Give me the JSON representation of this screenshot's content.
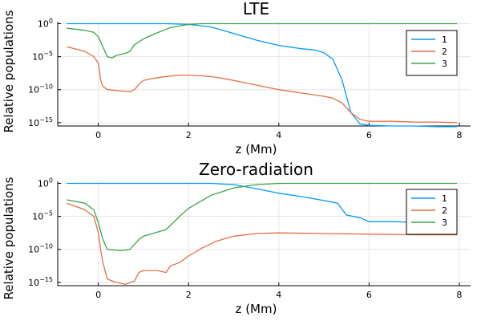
{
  "chart_data": [
    {
      "type": "line",
      "title": "LTE",
      "xlabel": "z (Mm)",
      "ylabel": "Relative populations",
      "xlim": [
        -0.9,
        8.25
      ],
      "ylim_log10": [
        -15.5,
        0.3
      ],
      "y_scale": "log",
      "x_ticks": [
        0,
        2,
        4,
        6,
        8
      ],
      "x_tick_labels": [
        "0",
        "2",
        "4",
        "6",
        "8"
      ],
      "y_ticks_log10": [
        0,
        -5,
        -10,
        -15
      ],
      "y_tick_labels": [
        {
          "base": "10",
          "exp": "0"
        },
        {
          "base": "10",
          "exp": "−5"
        },
        {
          "base": "10",
          "exp": "−10"
        },
        {
          "base": "10",
          "exp": "−15"
        }
      ],
      "grid": true,
      "legend_position": "top-right",
      "series": [
        {
          "name": "1",
          "color": "#009AFA",
          "x": [
            -0.7,
            0,
            0.5,
            1,
            1.5,
            2.0,
            2.5,
            3.0,
            3.5,
            4.0,
            4.5,
            4.8,
            5.0,
            5.2,
            5.4,
            5.6,
            5.8,
            6.0,
            6.5,
            7.0,
            7.5,
            7.95
          ],
          "log10y": [
            0,
            0,
            0,
            0,
            0,
            -0.1,
            -0.5,
            -1.5,
            -2.5,
            -3.3,
            -3.8,
            -4.0,
            -4.4,
            -5.4,
            -8.5,
            -13.5,
            -15.2,
            -15.4,
            -15.5,
            -15.5,
            -15.6,
            -15.6
          ]
        },
        {
          "name": "2",
          "color": "#E26F46",
          "x": [
            -0.7,
            -0.3,
            -0.1,
            0.0,
            0.05,
            0.1,
            0.2,
            0.5,
            0.7,
            0.8,
            0.9,
            1.0,
            1.2,
            1.5,
            1.8,
            2.0,
            2.3,
            2.6,
            3.0,
            3.5,
            4.0,
            4.5,
            5.0,
            5.2,
            5.4,
            5.6,
            5.8,
            6.0,
            6.5,
            7.0,
            7.5,
            7.95
          ],
          "log10y": [
            -3.5,
            -4.2,
            -5.0,
            -6.0,
            -8.5,
            -9.5,
            -10.0,
            -10.2,
            -10.3,
            -10.0,
            -9.2,
            -8.6,
            -8.3,
            -8.0,
            -7.8,
            -7.8,
            -7.9,
            -8.1,
            -8.6,
            -9.3,
            -10.0,
            -10.5,
            -11.0,
            -11.3,
            -12.0,
            -13.5,
            -14.5,
            -14.8,
            -14.8,
            -14.9,
            -14.9,
            -15.0
          ]
        },
        {
          "name": "3",
          "color": "#3EA44E",
          "x": [
            -0.7,
            -0.3,
            -0.1,
            0.0,
            0.1,
            0.2,
            0.3,
            0.4,
            0.6,
            0.7,
            0.8,
            1.0,
            1.3,
            1.6,
            2.0,
            2.3,
            2.6,
            3.0,
            4.0,
            5.0,
            6.0,
            7.0,
            7.95
          ],
          "log10y": [
            -0.7,
            -1.0,
            -1.3,
            -2.0,
            -3.5,
            -5.0,
            -5.2,
            -4.8,
            -4.5,
            -4.2,
            -3.2,
            -2.3,
            -1.4,
            -0.6,
            -0.1,
            0.0,
            0.0,
            0.0,
            0.0,
            0.0,
            0.0,
            0.0,
            0.0
          ]
        }
      ]
    },
    {
      "type": "line",
      "title": "Zero-radiation",
      "xlabel": "z (Mm)",
      "ylabel": "Relative populations",
      "xlim": [
        -0.9,
        8.25
      ],
      "ylim_log10": [
        -15.5,
        0.3
      ],
      "y_scale": "log",
      "x_ticks": [
        0,
        2,
        4,
        6,
        8
      ],
      "x_tick_labels": [
        "0",
        "2",
        "4",
        "6",
        "8"
      ],
      "y_ticks_log10": [
        0,
        -5,
        -10,
        -15
      ],
      "y_tick_labels": [
        {
          "base": "10",
          "exp": "0"
        },
        {
          "base": "10",
          "exp": "−5"
        },
        {
          "base": "10",
          "exp": "−10"
        },
        {
          "base": "10",
          "exp": "−15"
        }
      ],
      "grid": true,
      "legend_position": "top-right",
      "series": [
        {
          "name": "1",
          "color": "#009AFA",
          "x": [
            -0.7,
            0,
            1,
            2,
            2.5,
            3.0,
            3.5,
            4.0,
            4.5,
            5.0,
            5.3,
            5.5,
            5.8,
            6.0,
            6.5,
            7.0,
            7.5,
            7.95
          ],
          "log10y": [
            0,
            0,
            0,
            0,
            0,
            -0.2,
            -0.8,
            -1.5,
            -2.0,
            -2.6,
            -3.0,
            -4.8,
            -5.2,
            -5.8,
            -5.8,
            -5.9,
            -5.9,
            -6.0
          ]
        },
        {
          "name": "2",
          "color": "#E26F46",
          "x": [
            -0.7,
            -0.3,
            -0.1,
            0.0,
            0.05,
            0.1,
            0.2,
            0.4,
            0.6,
            0.8,
            0.9,
            1.0,
            1.3,
            1.5,
            1.6,
            1.8,
            2.0,
            2.3,
            2.6,
            3.0,
            3.5,
            4.0,
            5.0,
            6.0,
            7.0,
            7.95
          ],
          "log10y": [
            -3.0,
            -4.0,
            -5.0,
            -7.5,
            -10.0,
            -12.0,
            -14.5,
            -15.0,
            -15.3,
            -14.8,
            -13.5,
            -13.2,
            -13.2,
            -13.5,
            -12.5,
            -12.0,
            -11.0,
            -9.8,
            -8.8,
            -8.0,
            -7.6,
            -7.5,
            -7.6,
            -7.7,
            -7.8,
            -7.8
          ]
        },
        {
          "name": "3",
          "color": "#3EA44E",
          "x": [
            -0.7,
            -0.3,
            -0.1,
            0.0,
            0.1,
            0.2,
            0.5,
            0.7,
            0.9,
            1.0,
            1.5,
            1.8,
            2.0,
            2.5,
            3.0,
            3.5,
            4.0,
            5.0,
            6.0,
            7.0,
            7.95
          ],
          "log10y": [
            -2.5,
            -3.0,
            -4.0,
            -6.0,
            -8.5,
            -10.0,
            -10.2,
            -10.0,
            -8.5,
            -8.0,
            -7.0,
            -5.0,
            -3.8,
            -1.8,
            -0.7,
            -0.2,
            0.0,
            0.0,
            0.0,
            0.0,
            0.0
          ]
        }
      ]
    }
  ]
}
